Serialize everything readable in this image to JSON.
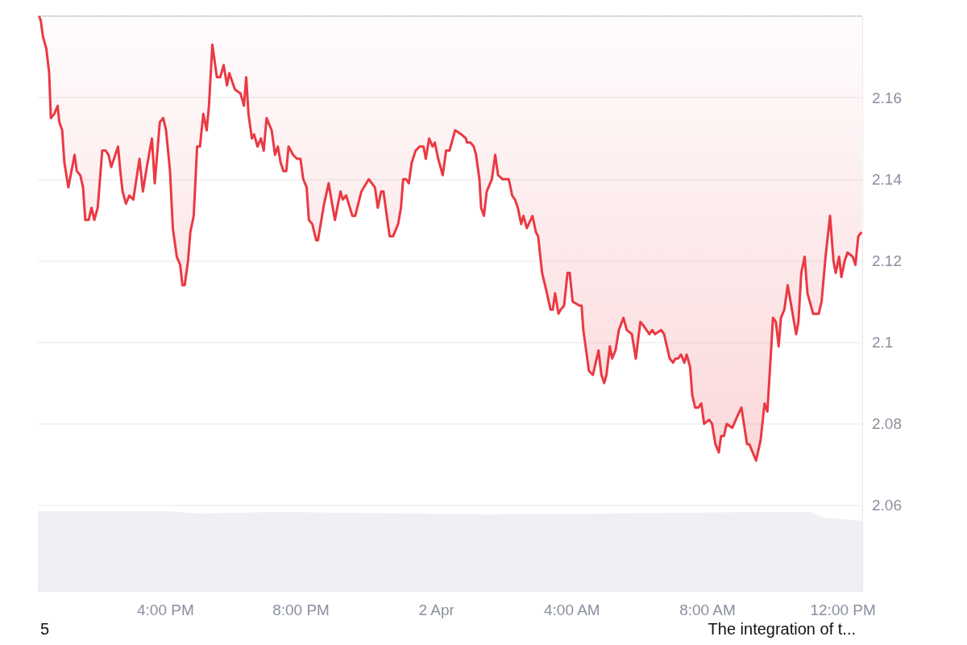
{
  "chart_data": {
    "type": "line",
    "annotations": [
      "5",
      "The integration of t..."
    ],
    "xlim": [
      "--04-01T12:14",
      "--04-02T12:34"
    ],
    "xticks": [
      {
        "value": "--04-01T16:00",
        "label": "4:00 PM"
      },
      {
        "value": "--04-01T20:00",
        "label": "8:00 PM"
      },
      {
        "value": "--04-02T00:00",
        "label": "2 Apr"
      },
      {
        "value": "--04-02T04:00",
        "label": "4:00 AM"
      },
      {
        "value": "--04-02T08:00",
        "label": "8:00 AM"
      },
      {
        "value": "--04-02T12:00",
        "label": "12:00 PM"
      }
    ],
    "ylim": [
      2.039,
      2.18
    ],
    "yticks": [
      2.06,
      2.08,
      2.1,
      2.12,
      2.14,
      2.16
    ],
    "grid": "y",
    "ref_lines": [
      {
        "axis": "y",
        "value": 2.18,
        "color": "#9aa0ab",
        "line_style": "dotted"
      }
    ],
    "series": [
      {
        "axis": "y",
        "color": "#ea3943",
        "x": [
          "--04-01T12:16",
          "--04-01T12:19",
          "--04-01T12:23",
          "--04-01T12:29",
          "--04-01T12:34",
          "--04-01T12:37",
          "--04-01T12:43",
          "--04-01T12:49",
          "--04-01T12:52",
          "--04-01T12:57",
          "--04-01T13:01",
          "--04-01T13:08",
          "--04-01T13:19",
          "--04-01T13:23",
          "--04-01T13:29",
          "--04-01T13:34",
          "--04-01T13:38",
          "--04-01T13:44",
          "--04-01T13:49",
          "--04-01T13:54",
          "--04-01T14:00",
          "--04-01T14:08",
          "--04-01T14:14",
          "--04-01T14:19",
          "--04-01T14:24",
          "--04-01T14:36",
          "--04-01T14:40",
          "--04-01T14:44",
          "--04-01T14:50",
          "--04-01T14:56",
          "--04-01T15:03",
          "--04-01T15:14",
          "--04-01T15:20",
          "--04-01T15:27",
          "--04-01T15:36",
          "--04-01T15:41",
          "--04-01T15:50",
          "--04-01T15:56",
          "--04-01T16:01",
          "--04-01T16:08",
          "--04-01T16:13",
          "--04-01T16:20",
          "--04-01T16:26",
          "--04-01T16:30",
          "--04-01T16:34",
          "--04-01T16:40",
          "--04-01T16:44",
          "--04-01T16:50",
          "--04-01T16:56",
          "--04-01T17:01",
          "--04-01T17:07",
          "--04-01T17:13",
          "--04-01T17:17",
          "--04-01T17:23",
          "--04-01T17:31",
          "--04-01T17:37",
          "--04-01T17:43",
          "--04-01T17:49",
          "--04-01T17:53",
          "--04-01T18:03",
          "--04-01T18:13",
          "--04-01T18:19",
          "--04-01T18:23",
          "--04-01T18:27",
          "--04-01T18:33",
          "--04-01T18:37",
          "--04-01T18:43",
          "--04-01T18:49",
          "--04-01T18:54",
          "--04-01T18:59",
          "--04-01T19:08",
          "--04-01T19:14",
          "--04-01T19:19",
          "--04-01T19:24",
          "--04-01T19:29",
          "--04-01T19:34",
          "--04-01T19:38",
          "--04-01T19:46",
          "--04-01T19:53",
          "--04-01T19:59",
          "--04-01T20:04",
          "--04-01T20:10",
          "--04-01T20:14",
          "--04-01T20:20",
          "--04-01T20:27",
          "--04-01T20:30",
          "--04-01T20:41",
          "--04-01T20:49",
          "--04-01T21:00",
          "--04-01T21:10",
          "--04-01T21:14",
          "--04-01T21:20",
          "--04-01T21:31",
          "--04-01T21:36",
          "--04-01T21:47",
          "--04-01T22:00",
          "--04-01T22:11",
          "--04-01T22:16",
          "--04-01T22:22",
          "--04-01T22:26",
          "--04-01T22:37",
          "--04-01T22:43",
          "--04-01T22:52",
          "--04-01T22:57",
          "--04-01T23:01",
          "--04-01T23:06",
          "--04-01T23:11",
          "--04-01T23:16",
          "--04-01T23:23",
          "--04-01T23:30",
          "--04-01T23:37",
          "--04-01T23:41",
          "--04-01T23:47",
          "--04-01T23:53",
          "--04-01T23:57",
          "--04-02T00:03",
          "--04-02T00:11",
          "--04-02T00:17",
          "--04-02T00:23",
          "--04-02T00:27",
          "--04-02T00:33",
          "--04-02T00:44",
          "--04-02T00:52",
          "--04-02T00:54",
          "--04-02T01:00",
          "--04-02T01:06",
          "--04-02T01:10",
          "--04-02T01:16",
          "--04-02T01:19",
          "--04-02T01:24",
          "--04-02T01:29",
          "--04-02T01:38",
          "--04-02T01:44",
          "--04-02T01:49",
          "--04-02T01:57",
          "--04-02T02:03",
          "--04-02T02:08",
          "--04-02T02:14",
          "--04-02T02:19",
          "--04-02T02:24",
          "--04-02T02:30",
          "--04-02T02:34",
          "--04-02T02:40",
          "--04-02T02:50",
          "--04-02T02:56",
          "--04-02T03:00",
          "--04-02T03:07",
          "--04-02T03:14",
          "--04-02T03:22",
          "--04-02T03:26",
          "--04-02T03:30",
          "--04-02T03:36",
          "--04-02T03:40",
          "--04-02T03:46",
          "--04-02T03:52",
          "--04-02T03:56",
          "--04-02T04:01",
          "--04-02T04:13",
          "--04-02T04:17",
          "--04-02T04:20",
          "--04-02T04:30",
          "--04-02T04:37",
          "--04-02T04:47",
          "--04-02T04:52",
          "--04-02T04:57",
          "--04-02T05:01",
          "--04-02T05:07",
          "--04-02T05:11",
          "--04-02T05:17",
          "--04-02T05:23",
          "--04-02T05:31",
          "--04-02T05:37",
          "--04-02T05:46",
          "--04-02T05:53",
          "--04-02T06:01",
          "--04-02T06:07",
          "--04-02T06:17",
          "--04-02T06:22",
          "--04-02T06:27",
          "--04-02T06:38",
          "--04-02T06:43",
          "--04-02T06:53",
          "--04-02T06:59",
          "--04-02T07:03",
          "--04-02T07:08",
          "--04-02T07:13",
          "--04-02T07:19",
          "--04-02T07:23",
          "--04-02T07:29",
          "--04-02T07:33",
          "--04-02T07:38",
          "--04-02T07:44",
          "--04-02T07:49",
          "--04-02T07:54",
          "--04-02T08:03",
          "--04-02T08:08",
          "--04-02T08:14",
          "--04-02T08:20",
          "--04-02T08:24",
          "--04-02T08:29",
          "--04-02T08:34",
          "--04-02T08:44",
          "--04-02T08:50",
          "--04-02T09:00",
          "--04-02T09:10",
          "--04-02T09:14",
          "--04-02T09:20",
          "--04-02T09:26",
          "--04-02T09:34",
          "--04-02T09:41",
          "--04-02T09:46",
          "--04-02T09:56",
          "--04-02T10:01",
          "--04-02T10:06",
          "--04-02T10:10",
          "--04-02T10:16",
          "--04-02T10:22",
          "--04-02T10:37",
          "--04-02T10:41",
          "--04-02T10:46",
          "--04-02T10:52",
          "--04-02T10:57",
          "--04-02T11:07",
          "--04-02T11:17",
          "--04-02T11:22",
          "--04-02T11:29",
          "--04-02T11:37",
          "--04-02T11:43",
          "--04-02T11:47",
          "--04-02T11:53",
          "--04-02T11:57",
          "--04-02T12:03",
          "--04-02T12:08",
          "--04-02T12:17",
          "--04-02T12:22",
          "--04-02T12:27",
          "--04-02T12:33"
        ],
        "values": [
          2.18,
          2.179,
          2.175,
          2.172,
          2.166,
          2.155,
          2.156,
          2.158,
          2.154,
          2.152,
          2.144,
          2.138,
          2.146,
          2.142,
          2.141,
          2.138,
          2.13,
          2.13,
          2.133,
          2.13,
          2.133,
          2.147,
          2.147,
          2.146,
          2.143,
          2.148,
          2.142,
          2.137,
          2.134,
          2.136,
          2.135,
          2.145,
          2.137,
          2.143,
          2.15,
          2.139,
          2.154,
          2.155,
          2.152,
          2.142,
          2.128,
          2.121,
          2.119,
          2.114,
          2.114,
          2.12,
          2.127,
          2.131,
          2.148,
          2.148,
          2.156,
          2.152,
          2.158,
          2.173,
          2.165,
          2.165,
          2.168,
          2.163,
          2.166,
          2.162,
          2.161,
          2.158,
          2.165,
          2.156,
          2.15,
          2.151,
          2.148,
          2.15,
          2.147,
          2.155,
          2.152,
          2.146,
          2.148,
          2.144,
          2.142,
          2.142,
          2.148,
          2.146,
          2.145,
          2.145,
          2.14,
          2.138,
          2.13,
          2.129,
          2.125,
          2.125,
          2.134,
          2.139,
          2.13,
          2.137,
          2.135,
          2.136,
          2.131,
          2.131,
          2.137,
          2.14,
          2.138,
          2.133,
          2.137,
          2.137,
          2.126,
          2.126,
          2.129,
          2.133,
          2.14,
          2.14,
          2.139,
          2.144,
          2.147,
          2.148,
          2.148,
          2.145,
          2.15,
          2.148,
          2.149,
          2.145,
          2.141,
          2.147,
          2.147,
          2.149,
          2.152,
          2.151,
          2.15,
          2.149,
          2.149,
          2.148,
          2.146,
          2.14,
          2.133,
          2.131,
          2.137,
          2.14,
          2.146,
          2.141,
          2.14,
          2.14,
          2.14,
          2.136,
          2.135,
          2.133,
          2.129,
          2.131,
          2.128,
          2.131,
          2.127,
          2.126,
          2.117,
          2.113,
          2.108,
          2.108,
          2.112,
          2.107,
          2.108,
          2.109,
          2.117,
          2.117,
          2.11,
          2.109,
          2.109,
          2.103,
          2.093,
          2.092,
          2.098,
          2.092,
          2.09,
          2.092,
          2.099,
          2.096,
          2.098,
          2.103,
          2.106,
          2.103,
          2.102,
          2.096,
          2.105,
          2.104,
          2.102,
          2.103,
          2.102,
          2.103,
          2.102,
          2.096,
          2.095,
          2.096,
          2.096,
          2.097,
          2.095,
          2.097,
          2.094,
          2.087,
          2.084,
          2.084,
          2.085,
          2.08,
          2.081,
          2.08,
          2.075,
          2.073,
          2.077,
          2.077,
          2.08,
          2.079,
          2.081,
          2.084,
          2.075,
          2.075,
          2.073,
          2.071,
          2.076,
          2.085,
          2.083,
          2.106,
          2.105,
          2.099,
          2.106,
          2.108,
          2.114,
          2.102,
          2.105,
          2.117,
          2.121,
          2.112,
          2.107,
          2.107,
          2.11,
          2.121,
          2.131,
          2.12,
          2.117,
          2.121,
          2.116,
          2.12,
          2.122,
          2.121,
          2.119,
          2.126,
          2.127
        ]
      }
    ]
  }
}
